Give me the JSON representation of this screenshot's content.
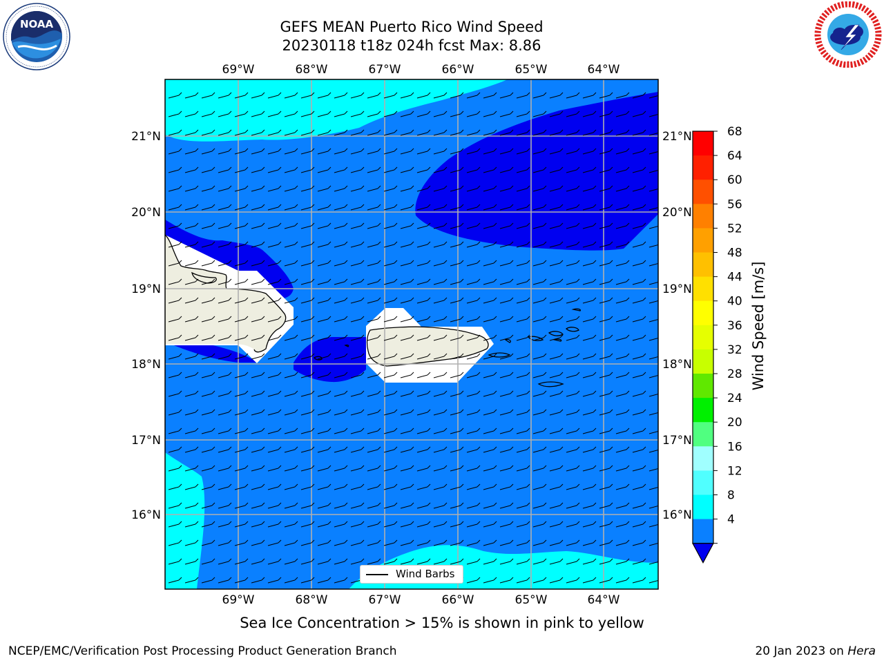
{
  "header": {
    "title_line1": "GEFS MEAN Puerto Rico Wind Speed",
    "title_line2": "20230118 t18z 024h fcst   Max: 8.86"
  },
  "logos": {
    "noaa": {
      "text": "NOAA",
      "ring_text": "NATIONAL OCEANIC AND ATMOSPHERIC ADMINISTRATION · U.S. DEPARTMENT OF COMMERCE"
    },
    "nws": {
      "ring_text": "NATIONAL WEATHER SERVICE"
    }
  },
  "map": {
    "lon_ticks": [
      "69°W",
      "68°W",
      "67°W",
      "66°W",
      "65°W",
      "64°W"
    ],
    "lat_ticks": [
      "21°N",
      "20°N",
      "19°N",
      "18°N",
      "17°N",
      "16°N"
    ],
    "colors": {
      "band_4_8": "#0a80ff",
      "band_8_12": "#00ffff",
      "band_lt_4": "#0000f0",
      "land": "#eeeee0",
      "grid": "#b0b0b0"
    },
    "legend_label": "Wind Barbs"
  },
  "colorbar": {
    "label": "Wind Speed [m/s]",
    "ticks": [
      "68",
      "64",
      "60",
      "56",
      "52",
      "48",
      "44",
      "40",
      "36",
      "32",
      "28",
      "24",
      "20",
      "16",
      "12",
      "8",
      "4"
    ],
    "colors": [
      "#ff0000",
      "#ff2000",
      "#ff5000",
      "#ff8000",
      "#ffa000",
      "#ffc000",
      "#ffe000",
      "#ffff00",
      "#e6ff00",
      "#c8ff00",
      "#60e800",
      "#00f000",
      "#50ff80",
      "#a0ffff",
      "#50ffff",
      "#00ffff",
      "#0a80ff"
    ],
    "extend_color": "#0000f0"
  },
  "footer": {
    "note": "Sea Ice Concentration > 15% is shown in pink to yellow",
    "left": "NCEP/EMC/Verification Post Processing Product Generation Branch",
    "right_date": "20 Jan 2023 on ",
    "right_host": "Hera"
  }
}
